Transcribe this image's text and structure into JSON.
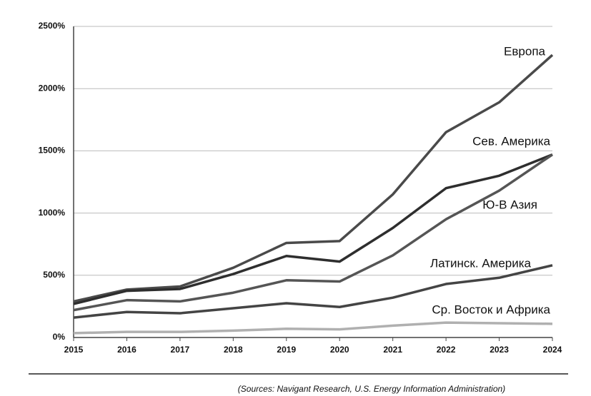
{
  "chart_data": {
    "type": "line",
    "source": "(Sources: Navigant Research, U.S. Energy Information Administration)",
    "x": [
      2015,
      2016,
      2017,
      2018,
      2019,
      2020,
      2021,
      2022,
      2023,
      2024
    ],
    "xlim": [
      2015,
      2024
    ],
    "xticks": [
      2015,
      2016,
      2017,
      2018,
      2019,
      2020,
      2021,
      2022,
      2023,
      2024
    ],
    "ylim": [
      0,
      2500
    ],
    "yticks": [
      {
        "value": 0,
        "label": "0%"
      },
      {
        "value": 500,
        "label": "500%"
      },
      {
        "value": 1000,
        "label": "1000%"
      },
      {
        "value": 1500,
        "label": "1500%"
      },
      {
        "value": 2000,
        "label": "2000%"
      },
      {
        "value": 2500,
        "label": "2500%"
      }
    ],
    "grid": true,
    "series": [
      {
        "name": "Европа",
        "color": "#4a4a4a",
        "values": [
          290,
          385,
          410,
          560,
          760,
          775,
          1150,
          1650,
          1890,
          2270
        ]
      },
      {
        "name": "Сев. Америка",
        "color": "#2e2e2e",
        "values": [
          270,
          375,
          390,
          510,
          655,
          610,
          880,
          1200,
          1300,
          1470
        ]
      },
      {
        "name": "Ю-В Азия",
        "color": "#555555",
        "values": [
          220,
          300,
          290,
          360,
          460,
          450,
          660,
          950,
          1180,
          1470
        ]
      },
      {
        "name": "Латинск. Америка",
        "color": "#444444",
        "values": [
          160,
          205,
          195,
          235,
          275,
          245,
          320,
          430,
          480,
          580
        ]
      },
      {
        "name": "Ср. Восток и Африка",
        "color": "#b0b0b0",
        "values": [
          35,
          45,
          45,
          55,
          70,
          65,
          95,
          120,
          115,
          110
        ]
      }
    ]
  }
}
